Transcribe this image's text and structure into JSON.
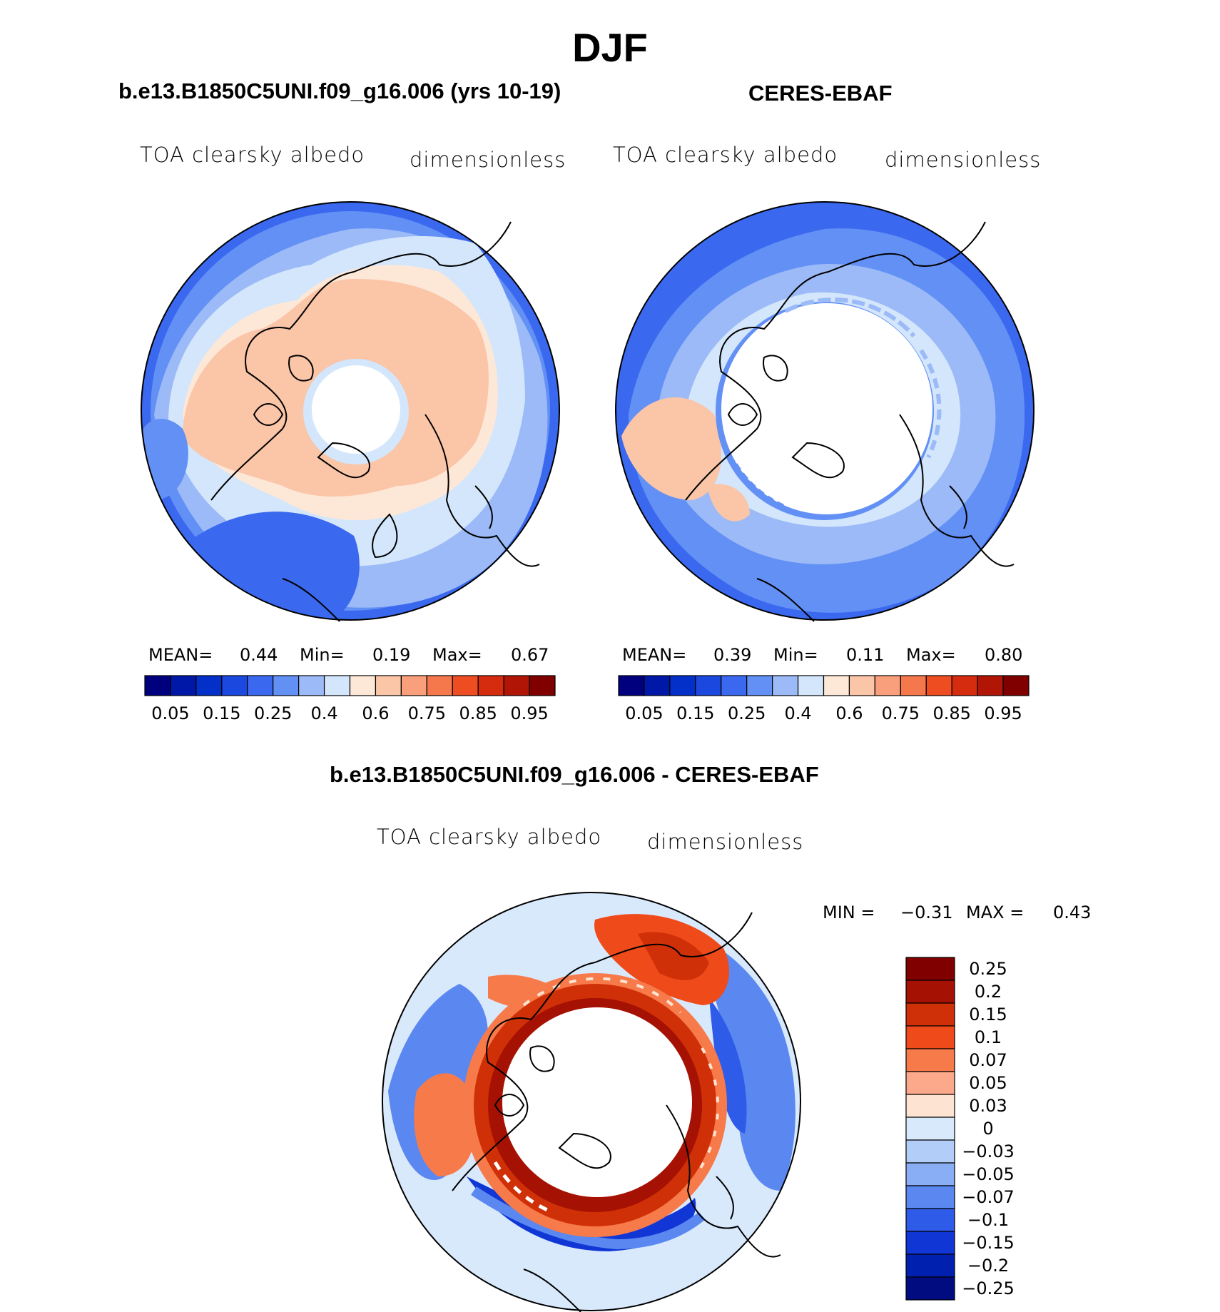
{
  "title": "DJF",
  "panels": {
    "model": {
      "header": "b.e13.B1850C5UNI.f09_g16.006 (yrs 10-19)",
      "variable": "TOA clearsky albedo",
      "units": "dimensionless",
      "stats": {
        "mean_label": "MEAN=",
        "mean": "0.44",
        "min_label": "Min=",
        "min": "0.19",
        "max_label": "Max=",
        "max": "0.67"
      }
    },
    "obs": {
      "header": "CERES-EBAF",
      "variable": "TOA clearsky albedo",
      "units": "dimensionless",
      "stats": {
        "mean_label": "MEAN=",
        "mean": "0.39",
        "min_label": "Min=",
        "min": "0.11",
        "max_label": "Max=",
        "max": "0.80"
      }
    },
    "diff": {
      "header": "b.e13.B1850C5UNI.f09_g16.006 - CERES-EBAF",
      "variable": "TOA clearsky albedo",
      "units": "dimensionless",
      "stats": {
        "min_label": "MIN =",
        "min": "−0.31",
        "max_label": "MAX =",
        "max": "0.43"
      }
    }
  },
  "colorbar_abs": {
    "colors": [
      "#00007f",
      "#0018a8",
      "#0330c8",
      "#1b49e0",
      "#3a69ef",
      "#6390f5",
      "#9bbaf7",
      "#d3e6fb",
      "#fde8d8",
      "#fbc5a8",
      "#f99f7b",
      "#f5774c",
      "#ee4d22",
      "#d52b0f",
      "#b01505",
      "#800000"
    ],
    "labels": [
      "0.05",
      "0.15",
      "0.25",
      "0.4",
      "0.6",
      "0.75",
      "0.85",
      "0.95"
    ]
  },
  "colorbar_diff": {
    "colors": [
      "#800000",
      "#a51102",
      "#d03007",
      "#ef4a1a",
      "#f77a4a",
      "#fba98a",
      "#fde3d2",
      "#d9e9fc",
      "#b2cdf8",
      "#8aaef5",
      "#5b88f0",
      "#2e5ce8",
      "#1037d5",
      "#0020b0",
      "#000c80"
    ],
    "labels": [
      "0.25",
      "0.2",
      "0.15",
      "0.1",
      "0.07",
      "0.05",
      "0.03",
      "0",
      "−0.03",
      "−0.05",
      "−0.07",
      "−0.1",
      "−0.15",
      "−0.2",
      "−0.25"
    ]
  }
}
